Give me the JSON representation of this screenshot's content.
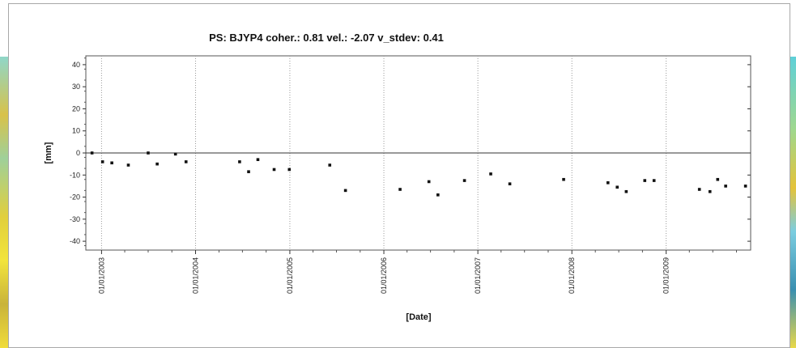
{
  "chart_data": {
    "type": "scatter",
    "title": "PS: BJYP4 coher.: 0.81 vel.: -2.07 v_stdev: 0.41",
    "xlabel": "[Date]",
    "ylabel": "[mm]",
    "ylim": [
      -44,
      44
    ],
    "xlim": [
      "2002-11-01",
      "2009-11-25"
    ],
    "y_ticks": [
      40,
      30,
      20,
      10,
      0,
      -10,
      -20,
      -30,
      -40
    ],
    "y_tick_labels": [
      "40",
      "30",
      "20",
      "10",
      "0",
      "-10",
      "-20",
      "-30",
      "-40"
    ],
    "x_ticks": [
      "2003-01-01",
      "2004-01-01",
      "2005-01-01",
      "2006-01-01",
      "2007-01-01",
      "2008-01-01",
      "2009-01-01"
    ],
    "x_tick_labels": [
      "01/01/2003",
      "01/01/2004",
      "01/01/2005",
      "01/01/2006",
      "01/01/2007",
      "01/01/2008",
      "01/01/2009"
    ],
    "grid": "vertical-dotted",
    "zero_line": true,
    "points": [
      {
        "x": "2002-11-25",
        "y": 0
      },
      {
        "x": "2003-01-05",
        "y": -4
      },
      {
        "x": "2003-02-10",
        "y": -4.5
      },
      {
        "x": "2003-04-15",
        "y": -5.5
      },
      {
        "x": "2003-07-01",
        "y": 0
      },
      {
        "x": "2003-08-05",
        "y": -5
      },
      {
        "x": "2003-10-15",
        "y": -0.5
      },
      {
        "x": "2003-11-25",
        "y": -4
      },
      {
        "x": "2004-06-20",
        "y": -4
      },
      {
        "x": "2004-07-25",
        "y": -8.5
      },
      {
        "x": "2004-08-30",
        "y": -3
      },
      {
        "x": "2004-11-01",
        "y": -7.5
      },
      {
        "x": "2004-12-30",
        "y": -7.5
      },
      {
        "x": "2005-06-05",
        "y": -5.5
      },
      {
        "x": "2005-08-05",
        "y": -17
      },
      {
        "x": "2006-03-05",
        "y": -16.5
      },
      {
        "x": "2006-06-25",
        "y": -13
      },
      {
        "x": "2006-07-30",
        "y": -19
      },
      {
        "x": "2006-11-10",
        "y": -12.5
      },
      {
        "x": "2007-02-20",
        "y": -9.5
      },
      {
        "x": "2007-05-05",
        "y": -14
      },
      {
        "x": "2007-11-30",
        "y": -12
      },
      {
        "x": "2008-05-20",
        "y": -13.5
      },
      {
        "x": "2008-06-25",
        "y": -15.5
      },
      {
        "x": "2008-07-30",
        "y": -17.5
      },
      {
        "x": "2008-10-10",
        "y": -12.5
      },
      {
        "x": "2008-11-15",
        "y": -12.5
      },
      {
        "x": "2009-05-10",
        "y": -16.5
      },
      {
        "x": "2009-06-20",
        "y": -17.5
      },
      {
        "x": "2009-07-20",
        "y": -12
      },
      {
        "x": "2009-08-20",
        "y": -15
      },
      {
        "x": "2009-11-05",
        "y": -15
      }
    ]
  }
}
